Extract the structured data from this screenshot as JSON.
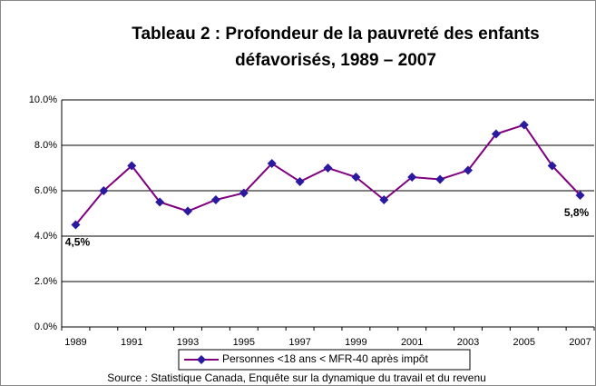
{
  "chart_data": {
    "type": "line",
    "title_lines": [
      "Tableau 2 : Profondeur de la pauvreté des enfants",
      "défavorisés, 1989 – 2007"
    ],
    "source": "Source : Statistique Canada, Enquête sur la dynamique du travail et du revenu",
    "categories": [
      "1989",
      null,
      "1991",
      null,
      "1993",
      null,
      "1995",
      null,
      "1997",
      null,
      "1999",
      null,
      "2001",
      null,
      "2003",
      null,
      "2005",
      null,
      "2007"
    ],
    "series": [
      {
        "name": "Personnes <18 ans < MFR-40 après impôt",
        "color": "#800080",
        "marker_color": "#2a1aa0",
        "values": [
          4.5,
          6.0,
          7.1,
          5.5,
          5.1,
          5.6,
          5.9,
          7.2,
          6.4,
          7.0,
          6.6,
          5.6,
          6.6,
          6.5,
          6.9,
          8.5,
          8.9,
          7.1,
          5.8
        ],
        "value_labels": [
          "4,5%",
          null,
          null,
          null,
          null,
          null,
          null,
          null,
          null,
          null,
          null,
          null,
          null,
          null,
          null,
          null,
          null,
          null,
          "5,8%"
        ]
      }
    ],
    "ylim": [
      0,
      10
    ],
    "yticks": [
      {
        "value": 0,
        "label": "0.0%"
      },
      {
        "value": 2,
        "label": "2.0%"
      },
      {
        "value": 4,
        "label": "4.0%"
      },
      {
        "value": 6,
        "label": "6.0%"
      },
      {
        "value": 8,
        "label": "8.0%"
      },
      {
        "value": 10,
        "label": "10.0%"
      }
    ],
    "grid": true,
    "legend": "bottom"
  }
}
